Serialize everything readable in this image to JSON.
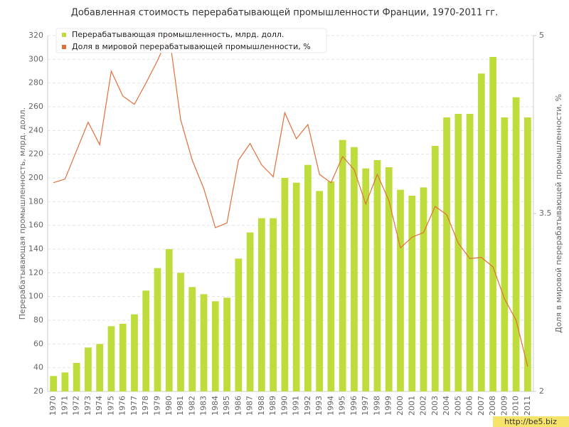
{
  "chart_data": {
    "type": "bar_line",
    "title": "Добавленная стоимость перерабатывающей промышленности Франции, 1970-2011 гг.",
    "y_label": "Перерабатывающая промышленность, млрд. долл.",
    "y2_label": "Доля в мировой перерабатывающей промышленности, %",
    "watermark": "http://be5.biz",
    "categories": [
      "1970",
      "1971",
      "1972",
      "1973",
      "1974",
      "1975",
      "1976",
      "1977",
      "1978",
      "1979",
      "1980",
      "1981",
      "1982",
      "1983",
      "1984",
      "1985",
      "1986",
      "1987",
      "1988",
      "1989",
      "1990",
      "1991",
      "1992",
      "1993",
      "1994",
      "1995",
      "1996",
      "1997",
      "1998",
      "1999",
      "2000",
      "2001",
      "2002",
      "2003",
      "2004",
      "2005",
      "2006",
      "2007",
      "2008",
      "2009",
      "2010",
      "2011"
    ],
    "series": [
      {
        "name": "Перерабатывающая промышленность, млрд. долл.",
        "color": "#bedd3c",
        "kind": "bar",
        "values": [
          33,
          36,
          44,
          57,
          60,
          75,
          77,
          85,
          105,
          124,
          140,
          120,
          108,
          102,
          96,
          99,
          132,
          154,
          166,
          166,
          200,
          196,
          211,
          189,
          197,
          232,
          226,
          208,
          215,
          209,
          190,
          185,
          192,
          227,
          251,
          254,
          254,
          288,
          302,
          251,
          268,
          251
        ]
      },
      {
        "name": "Доля в мировой перерабатывающей промышленности, %",
        "color": "#e0703a",
        "kind": "line",
        "axis": "y2",
        "values": [
          3.76,
          3.79,
          4.03,
          4.27,
          4.08,
          4.7,
          4.49,
          4.42,
          4.6,
          4.79,
          5.01,
          4.29,
          3.95,
          3.71,
          3.38,
          3.42,
          3.95,
          4.09,
          3.91,
          3.81,
          4.35,
          4.13,
          4.25,
          3.83,
          3.76,
          3.98,
          3.87,
          3.58,
          3.83,
          3.61,
          3.21,
          3.3,
          3.34,
          3.56,
          3.49,
          3.25,
          3.12,
          3.13,
          3.05,
          2.78,
          2.6,
          2.21
        ]
      }
    ],
    "ylim": [
      20,
      320
    ],
    "yticks": [
      20,
      40,
      60,
      80,
      100,
      120,
      140,
      160,
      180,
      200,
      220,
      240,
      260,
      280,
      300,
      320
    ],
    "y2lim": [
      2,
      5
    ],
    "y2ticks": [
      2,
      3.5,
      5
    ],
    "grid": true,
    "legend": "top-left"
  }
}
